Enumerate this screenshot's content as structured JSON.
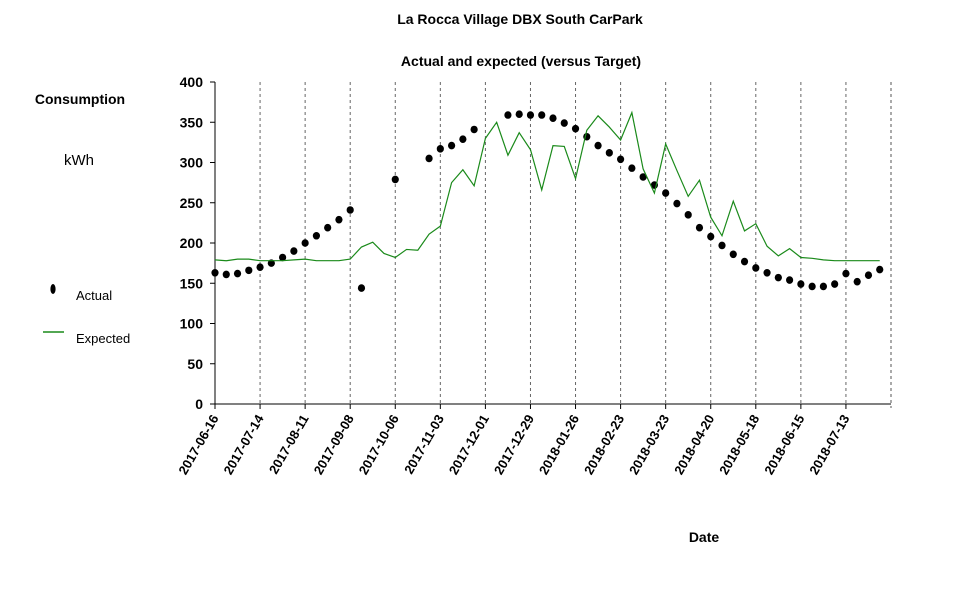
{
  "chart_data": {
    "type": "line",
    "title": "La Rocca Village DBX South CarPark",
    "subtitle": "Actual and expected (versus Target)",
    "y_label": "Consumption",
    "y_unit": "kWh",
    "x_label": "Date",
    "categories": [
      "2017-06-16",
      null,
      null,
      null,
      "2017-07-14",
      null,
      null,
      null,
      "2017-08-11",
      null,
      null,
      null,
      "2017-09-08",
      null,
      null,
      null,
      "2017-10-06",
      null,
      null,
      null,
      "2017-11-03",
      null,
      null,
      null,
      "2017-12-01",
      null,
      null,
      null,
      "2017-12-29",
      null,
      null,
      null,
      "2018-01-26",
      null,
      null,
      null,
      "2018-02-23",
      null,
      null,
      null,
      "2018-03-23",
      null,
      null,
      null,
      "2018-04-20",
      null,
      null,
      null,
      "2018-05-18",
      null,
      null,
      null,
      "2018-06-15",
      null,
      null,
      null,
      "2018-07-13",
      null,
      null,
      null
    ],
    "series": [
      {
        "name": "Actual",
        "color": "#000000",
        "marker": "dot",
        "values": [
          163,
          161,
          162,
          166,
          170,
          175,
          182,
          190,
          200,
          209,
          219,
          229,
          241,
          144,
          null,
          null,
          279,
          null,
          null,
          305,
          317,
          321,
          329,
          341,
          null,
          null,
          359,
          360,
          359,
          359,
          355,
          349,
          342,
          332,
          321,
          312,
          304,
          293,
          282,
          272,
          262,
          249,
          235,
          219,
          208,
          197,
          186,
          177,
          169,
          163,
          157,
          154,
          149,
          146,
          146,
          149,
          162,
          152,
          160,
          167
        ]
      },
      {
        "name": "Expected",
        "color": "#1a8a1a",
        "marker": "line",
        "values": [
          179,
          178,
          180,
          180,
          178,
          178,
          178,
          179,
          180,
          178,
          178,
          178,
          180,
          195,
          201,
          187,
          182,
          192,
          191,
          211,
          221,
          275,
          291,
          271,
          330,
          350,
          309,
          337,
          316,
          266,
          321,
          320,
          280,
          340,
          358,
          344,
          328,
          362,
          292,
          262,
          323,
          290,
          258,
          278,
          232,
          209,
          252,
          215,
          224,
          196,
          184,
          193,
          182,
          181,
          179,
          178,
          178,
          178,
          178,
          178
        ]
      }
    ],
    "ylim": [
      0,
      400
    ],
    "yticks": [
      0,
      50,
      100,
      150,
      200,
      250,
      300,
      350,
      400
    ],
    "grid": "x-dashed"
  }
}
